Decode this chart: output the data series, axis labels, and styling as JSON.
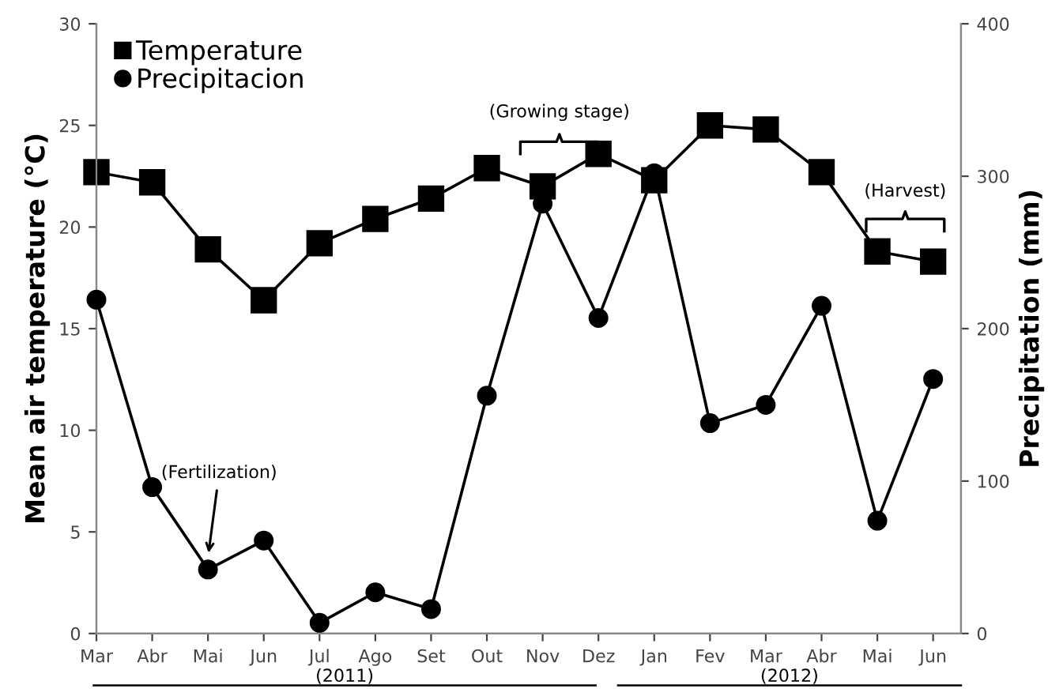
{
  "chart_data": {
    "type": "line",
    "categories": [
      "Mar",
      "Abr",
      "Mai",
      "Jun",
      "Jul",
      "Ago",
      "Set",
      "Out",
      "Nov",
      "Dez",
      "Jan",
      "Fev",
      "Mar",
      "Abr",
      "Mai",
      "Jun"
    ],
    "series": [
      {
        "name": "Temperature",
        "color": "#000000",
        "marker": "square",
        "values": [
          22.7,
          22.2,
          18.9,
          16.4,
          19.2,
          20.4,
          21.4,
          22.9,
          22.0,
          23.6,
          22.3,
          25.0,
          24.8,
          22.7,
          18.8,
          18.3
        ]
      },
      {
        "name": "Precipitacion",
        "color": "#000000",
        "marker": "circle",
        "axis": "y2",
        "values": [
          219,
          96,
          42,
          61,
          7,
          27,
          16,
          156,
          282,
          207,
          302,
          138,
          150,
          215,
          74,
          167
        ]
      }
    ],
    "ylabel": "Mean air temperature (°C)",
    "y2label": "Precipitation (mm)",
    "ylim": [
      0,
      30
    ],
    "yticks": [
      0,
      5,
      10,
      15,
      20,
      25,
      30
    ],
    "y2lim": [
      0,
      400
    ],
    "y2ticks": [
      0,
      100,
      200,
      300,
      400
    ],
    "annotations": [
      "(Fertilization)",
      "(Growing stage)",
      "(Harvest)",
      "(2011)",
      "(2012)"
    ],
    "legend": "top left",
    "grid": false
  }
}
